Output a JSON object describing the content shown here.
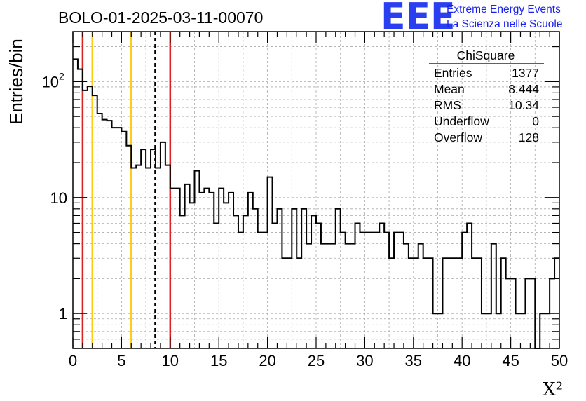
{
  "chart_data": {
    "type": "histogram",
    "title": "BOLO-01-2025-03-11-00070",
    "xlabel": "X²",
    "ylabel": "Entries/bin",
    "xlim": [
      0,
      50
    ],
    "ylim": [
      0.5,
      270
    ],
    "yscale": "log",
    "grid": true,
    "bin_width": 0.5,
    "x_ticks": [
      "0",
      "5",
      "10",
      "15",
      "20",
      "25",
      "30",
      "35",
      "40",
      "45",
      "50"
    ],
    "y_ticks": [
      {
        "value": 1,
        "label": "1"
      },
      {
        "value": 10,
        "label": "10"
      },
      {
        "value": 100,
        "label": "10",
        "exponent": "2"
      }
    ],
    "counts": [
      156,
      128,
      84,
      91,
      76,
      53,
      47,
      46,
      40,
      40,
      37,
      28,
      18,
      19,
      26,
      18,
      26,
      18,
      30,
      19,
      12,
      12,
      7,
      13,
      9,
      17,
      11,
      12,
      11,
      6,
      12,
      9,
      11,
      7,
      5,
      7,
      11,
      8,
      5,
      5,
      15,
      6,
      8,
      3,
      3,
      8,
      3,
      8,
      4,
      7,
      6,
      4,
      4,
      4,
      8,
      5,
      4,
      4,
      6,
      5,
      5,
      5,
      5,
      6,
      5,
      3,
      5,
      5,
      4,
      3,
      3,
      4,
      3,
      3,
      1,
      1,
      3,
      3,
      3,
      3,
      5,
      6,
      3,
      3,
      1,
      1,
      4,
      1,
      3,
      2,
      2,
      1,
      1,
      2,
      2,
      0,
      1,
      1,
      2,
      3
    ],
    "vertical_lines": [
      {
        "x": 1,
        "color": "#dd2222",
        "style": "solid"
      },
      {
        "x": 2,
        "color": "#ffcc11",
        "style": "solid"
      },
      {
        "x": 6,
        "color": "#ffcc11",
        "style": "solid"
      },
      {
        "x": 8.444,
        "color": "#000000",
        "style": "dashed"
      },
      {
        "x": 10,
        "color": "#dd2222",
        "style": "solid"
      }
    ],
    "stats": {
      "title": "ChiSquare",
      "rows": [
        {
          "label": "Entries",
          "value": "1377"
        },
        {
          "label": "Mean",
          "value": "8.444"
        },
        {
          "label": "RMS",
          "value": "10.34"
        },
        {
          "label": "Underflow",
          "value": "0"
        },
        {
          "label": "Overflow",
          "value": "128"
        }
      ]
    }
  },
  "logo": {
    "text": "EEE",
    "line1": "Extreme Energy Events",
    "line2": "La Scienza nelle Scuole"
  }
}
